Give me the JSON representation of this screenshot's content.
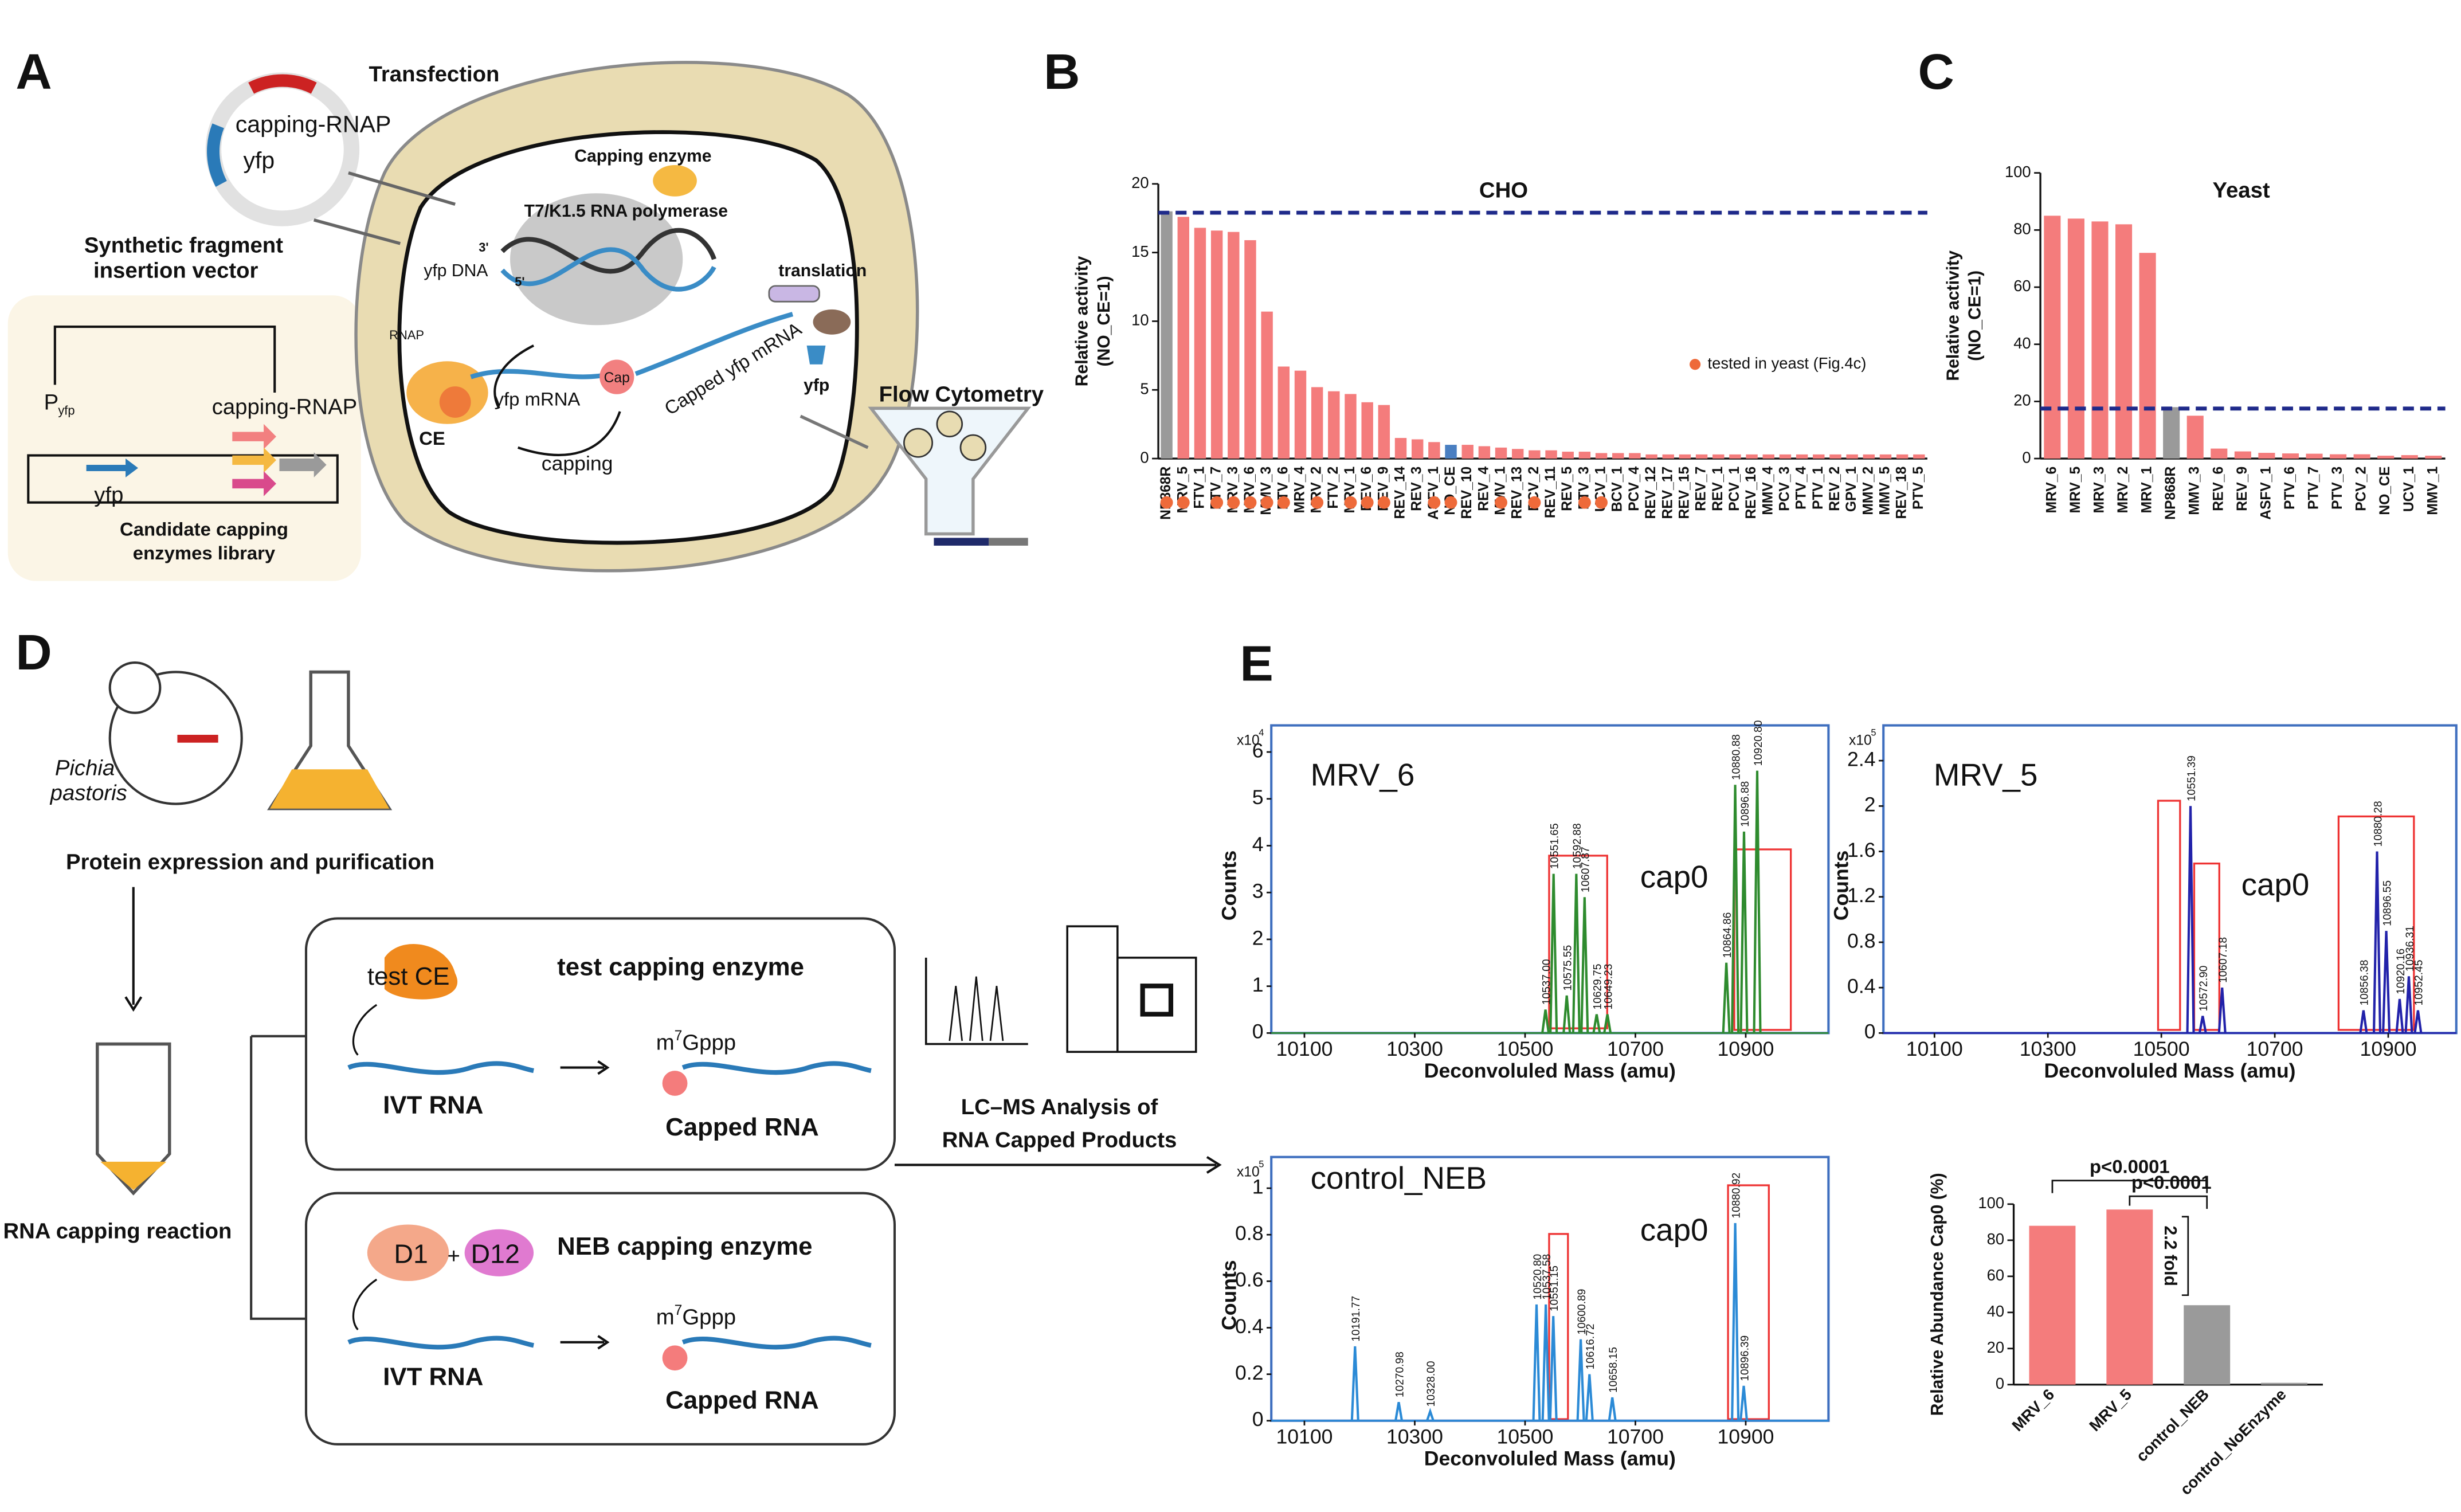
{
  "panel_labels": [
    "A",
    "B",
    "C",
    "D",
    "E"
  ],
  "diagram": {
    "transfection": "Transfection",
    "plasmid_gene1": "capping-RNAP",
    "plasmid_gene2": "yfp",
    "vector_title": [
      "Synthetic fragment",
      "insertion vector"
    ],
    "promoter": "P",
    "promoter_sub": "yfp",
    "vector_gene1": "yfp",
    "vector_gene2": "capping-RNAP",
    "library": [
      "Candidate capping",
      "enzymes library"
    ],
    "capping_enzyme": "Capping enzyme",
    "polymerase": "T7/K1.5 RNA polymerase",
    "dna_3": "3'",
    "dna_5": "5'",
    "dna": "yfp DNA",
    "rnap": "RNAP",
    "ce": "CE",
    "mrna": "yfp mRNA",
    "cap": "Cap",
    "capped_mrna": "Capped yfp mRNA",
    "capping": "capping",
    "translation": "translation",
    "protein": "yfp",
    "flow": "Flow Cytometry",
    "species": [
      "Pichia",
      "pastoris"
    ],
    "expression": "Protein expression and purification",
    "reaction": "RNA capping reaction",
    "test_box": {
      "enzyme": "test CE",
      "title": "test capping enzyme",
      "cap_m": "m",
      "cap_sup": "7",
      "cap_g": "Gppp",
      "substrate": "IVT RNA",
      "product": "Capped RNA"
    },
    "neb_box": {
      "enzyme1": "D1",
      "plus": "+",
      "enzyme2": "D12",
      "title": "NEB capping enzyme",
      "cap_m": "m",
      "cap_sup": "7",
      "cap_g": "Gppp",
      "substrate": "IVT RNA",
      "product": "Capped RNA"
    },
    "analysis": [
      "LC–MS Analysis of",
      "RNA Capped Products"
    ]
  },
  "chart_data": [
    {
      "type": "bar",
      "title": "CHO",
      "y_label": [
        "Relative activity",
        "(NO_CE=1)"
      ],
      "categories": [
        "NP868R",
        "MRV_5",
        "FTV_1",
        "PTV_7",
        "MRV_3",
        "MRV_6",
        "MMV_3",
        "PTV_6",
        "MRV_4",
        "MRV_2",
        "FTV_2",
        "MRV_1",
        "REV_6",
        "REV_9",
        "REV_14",
        "REV_3",
        "ASFV_1",
        "NO_CE",
        "REV_10",
        "REV_4",
        "MMV_1",
        "REV_13",
        "PCV_2",
        "REV_11",
        "REV_5",
        "PTV_3",
        "UCV_1",
        "BCV_1",
        "PCV_4",
        "REV_12",
        "REV_17",
        "REV_15",
        "REV_7",
        "REV_1",
        "PCV_1",
        "REV_16",
        "MMV_4",
        "PCV_3",
        "PTV_4",
        "PTV_1",
        "REV_2",
        "GPV_1",
        "MMV_2",
        "MMV_5",
        "REV_18",
        "PTV_5"
      ],
      "values": [
        18,
        17.6,
        16.8,
        16.6,
        16.5,
        15.9,
        10.7,
        6.7,
        6.4,
        5.2,
        4.9,
        4.7,
        4.1,
        3.9,
        1.5,
        1.4,
        1.2,
        1.0,
        1.0,
        0.9,
        0.8,
        0.7,
        0.6,
        0.6,
        0.5,
        0.5,
        0.4,
        0.4,
        0.4,
        0.3,
        0.3,
        0.3,
        0.3,
        0.3,
        0.3,
        0.3,
        0.3,
        0.3,
        0.3,
        0.3,
        0.3,
        0.3,
        0.3,
        0.3,
        0.3,
        0.3
      ],
      "color": "#f47c7c",
      "special_colors": {
        "NP868R": "#9a9a9a",
        "NO_CE": "#4a7fc1"
      },
      "ylim": [
        0,
        20
      ],
      "yticks": [
        0,
        5,
        10,
        15,
        20
      ],
      "reference_line": {
        "value": 17.9,
        "color": "#1f2a8a"
      },
      "dots": {
        "name": "tested in yeast (Fig.4c)",
        "color": "#ee6a3a",
        "categories": [
          "MRV_5",
          "PTV_7",
          "MRV_3",
          "MRV_6",
          "MMV_3",
          "PTV_6",
          "MRV_2",
          "MRV_1",
          "REV_6",
          "REV_9",
          "NP868R",
          "ASFV_1",
          "NO_CE",
          "MMV_1",
          "PCV_2",
          "PTV_3",
          "UCV_1"
        ]
      }
    },
    {
      "type": "bar",
      "title": "Yeast",
      "y_label": [
        "Relative activity",
        "(NO_CE=1)"
      ],
      "categories": [
        "MRV_6",
        "MRV_5",
        "MRV_3",
        "MRV_2",
        "MRV_1",
        "NP868R",
        "MMV_3",
        "REV_6",
        "REV_9",
        "ASFV_1",
        "PTV_6",
        "PTV_7",
        "PTV_3",
        "PCV_2",
        "NO_CE",
        "UCV_1",
        "MMV_1"
      ],
      "values": [
        85,
        84,
        83,
        82,
        72,
        18,
        15,
        3.5,
        2.5,
        2,
        1.8,
        1.7,
        1.5,
        1.5,
        1,
        1.2,
        1
      ],
      "color": "#f47c7c",
      "special_colors": {
        "NP868R": "#9a9a9a"
      },
      "ylim": [
        0,
        100
      ],
      "yticks": [
        0,
        20,
        40,
        60,
        80,
        100
      ],
      "reference_line": {
        "value": 17.5,
        "color": "#1f2a8a"
      }
    },
    {
      "type": "spectrum",
      "title": "MRV_6",
      "scale_label": "x10",
      "scale_exponent": "4",
      "y_label": "Counts",
      "x_label": "Deconvoluled Mass (amu)",
      "annotation": "cap0",
      "color": "#2e8b2e",
      "xlim": [
        10040,
        11050
      ],
      "xticks": [
        10100,
        10300,
        10500,
        10700,
        10900
      ],
      "ylim": [
        0,
        6.3
      ],
      "yticks": [
        0,
        1,
        2,
        3,
        4,
        5,
        6
      ],
      "x": [
        10537.0,
        10551.65,
        10575.55,
        10592.88,
        10607.87,
        10629.75,
        10649.23,
        10864.86,
        10880.88,
        10896.88,
        10920.8
      ],
      "values": [
        0.5,
        3.4,
        0.8,
        3.4,
        2.9,
        0.4,
        0.4,
        1.5,
        5.3,
        4.3,
        5.6
      ],
      "peak_labels": [
        "10537.00",
        "10551.65",
        "10575.55",
        "10592.88",
        "10607.87",
        "10629.75",
        "10649.23",
        "10864.86",
        "10880.88",
        "10896.88",
        "10920.80"
      ]
    },
    {
      "type": "spectrum",
      "title": "MRV_5",
      "scale_label": "x10",
      "scale_exponent": "5",
      "y_label": "Counts",
      "x_label": "Deconvoluled Mass (amu)",
      "annotation": "cap0",
      "color": "#2222aa",
      "xlim": [
        10010,
        11020
      ],
      "xticks": [
        10100,
        10300,
        10500,
        10700,
        10900
      ],
      "ylim": [
        0,
        2.6
      ],
      "yticks": [
        0,
        0.4,
        0.8,
        1.2,
        1.6,
        2,
        2.4
      ],
      "x": [
        10551.39,
        10572.9,
        10607.18,
        10856.38,
        10880.28,
        10896.55,
        10920.16,
        10936.31,
        10952.45
      ],
      "values": [
        2.0,
        0.15,
        0.4,
        0.2,
        1.6,
        0.9,
        0.3,
        0.5,
        0.2
      ],
      "peak_labels": [
        "10551.39",
        "10572.90",
        "10607.18",
        "10856.38",
        "10880.28",
        "10896.55",
        "10920.16",
        "10936.31",
        "10952.45"
      ]
    },
    {
      "type": "spectrum",
      "title": "control_NEB",
      "scale_label": "x10",
      "scale_exponent": "5",
      "y_label": "Counts",
      "x_label": "Deconvoluled Mass (amu)",
      "annotation": "cap0",
      "color": "#2b8ad6",
      "xlim": [
        10040,
        11050
      ],
      "xticks": [
        10100,
        10300,
        10500,
        10700,
        10900
      ],
      "ylim": [
        0,
        1.08
      ],
      "yticks": [
        0,
        0.2,
        0.4,
        0.6,
        0.8,
        1
      ],
      "x": [
        10191.77,
        10270.98,
        10328.0,
        10520.8,
        10537.58,
        10551.15,
        10600.89,
        10616.72,
        10658.15,
        10880.92,
        10896.39
      ],
      "values": [
        0.32,
        0.08,
        0.04,
        0.5,
        0.5,
        0.45,
        0.35,
        0.2,
        0.1,
        0.85,
        0.15
      ],
      "peak_labels": [
        "10191.77",
        "10270.98",
        "10328.00",
        "10520.80",
        "10537.58",
        "10551.15",
        "10600.89",
        "10616.72",
        "10658.15",
        "10880.92",
        "10896.39"
      ]
    },
    {
      "type": "bar",
      "y_label": [
        "Relative Abundance Cap0 (%)"
      ],
      "categories": [
        "MRV_6",
        "MRV_5",
        "control_NEB",
        "control_NoEnzyme"
      ],
      "values": [
        88,
        97,
        44,
        1
      ],
      "colors": [
        "#f47c7c",
        "#f47c7c",
        "#9a9a9a",
        "#9a9a9a"
      ],
      "ylim": [
        0,
        100
      ],
      "yticks": [
        0,
        20,
        40,
        60,
        80,
        100
      ],
      "annotations": [
        "p<0.0001",
        "p<0.0001",
        "2.2 fold"
      ]
    }
  ]
}
